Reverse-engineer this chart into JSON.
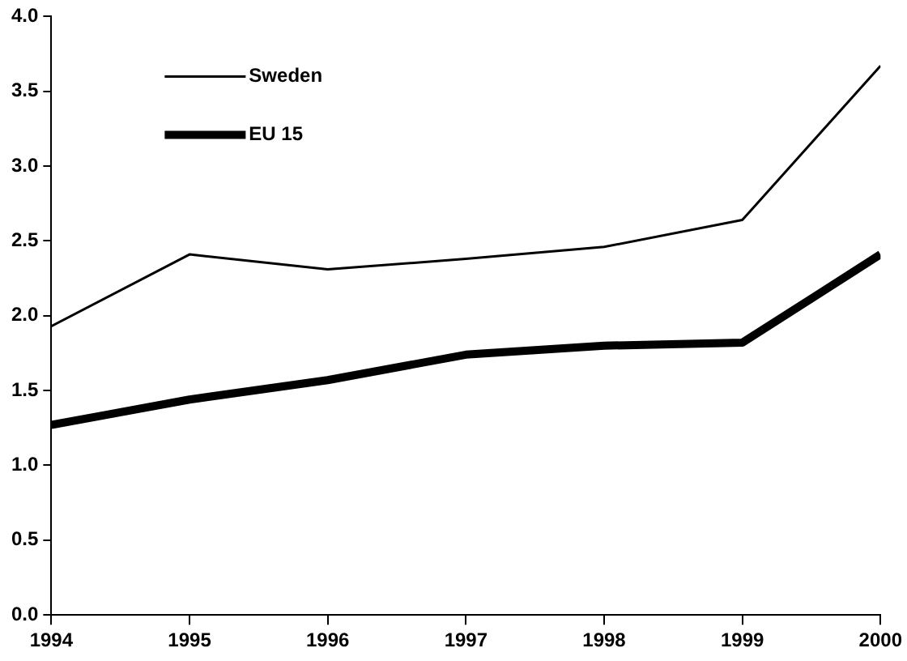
{
  "chart_data": {
    "type": "line",
    "x": [
      1994,
      1995,
      1996,
      1997,
      1998,
      1999,
      2000
    ],
    "series": [
      {
        "name": "Sweden",
        "color": "#000000",
        "values": [
          1.93,
          2.41,
          2.31,
          2.38,
          2.46,
          2.64,
          3.67
        ]
      },
      {
        "name": "EU 15",
        "color": "#000000",
        "values": [
          1.27,
          1.44,
          1.57,
          1.74,
          1.8,
          1.82,
          2.41
        ]
      }
    ],
    "xlim": [
      1994,
      2000
    ],
    "xticks": [
      1994,
      1995,
      1996,
      1997,
      1998,
      1999,
      2000
    ],
    "ylim": [
      0,
      4
    ],
    "yticks": [
      {
        "value": 0,
        "label": "0.0"
      },
      {
        "value": 0.5,
        "label": "0.5"
      },
      {
        "value": 1,
        "label": "1.0"
      },
      {
        "value": 1.5,
        "label": "1.5"
      },
      {
        "value": 2,
        "label": "2.0"
      },
      {
        "value": 2.5,
        "label": "2.5"
      },
      {
        "value": 3,
        "label": "3.0"
      },
      {
        "value": 3.5,
        "label": "3.5"
      },
      {
        "value": 4,
        "label": "4.0"
      }
    ],
    "grid": false,
    "legend": "top left",
    "marker": "none",
    "line_style": "solid"
  }
}
